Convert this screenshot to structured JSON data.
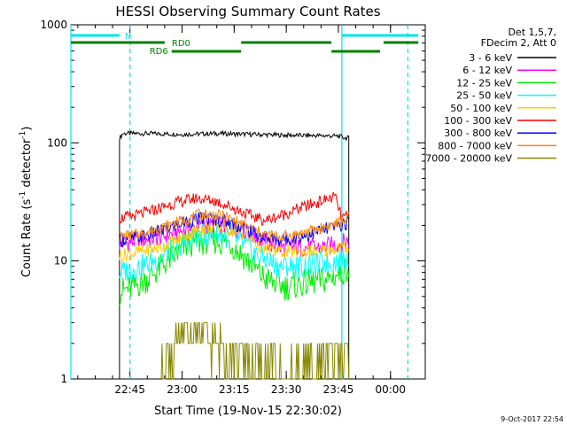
{
  "chart_data": {
    "type": "line",
    "title": "HESSI Observing Summary Count Rates",
    "xlabel": "Start Time (19-Nov-15 22:30:02)",
    "ylabel_main": "Count Rate (s",
    "ylabel_sup1": "-1",
    "ylabel_mid": " detector",
    "ylabel_sup2": "-1",
    "ylabel_end": ")",
    "yscale": "log",
    "ylim": [
      1,
      1000
    ],
    "xlim_min": [
      -2,
      100
    ],
    "x_ticks": [
      {
        "min": 15,
        "label": "22:45"
      },
      {
        "min": 30,
        "label": "23:00"
      },
      {
        "min": 45,
        "label": "23:15"
      },
      {
        "min": 60,
        "label": "23:30"
      },
      {
        "min": 75,
        "label": "23:45"
      },
      {
        "min": 90,
        "label": "00:00"
      }
    ],
    "y_ticks": [
      {
        "value": 1,
        "label": "1"
      },
      {
        "value": 10,
        "label": "10"
      },
      {
        "value": 100,
        "label": "100"
      },
      {
        "value": 1000,
        "label": "1000"
      }
    ],
    "legend_header": [
      "Det 1,5,7,",
      "FDecim 2, Att 0"
    ],
    "legend_placement": "top-right, outside plot",
    "series": [
      {
        "name": "3 - 6 keV",
        "color": "#000000",
        "points": [
          [
            12,
            110
          ],
          [
            13,
            120
          ],
          [
            20,
            120
          ],
          [
            30,
            118
          ],
          [
            40,
            120
          ],
          [
            50,
            118
          ],
          [
            60,
            116
          ],
          [
            70,
            115
          ],
          [
            75,
            114
          ],
          [
            77,
            110
          ],
          [
            78,
            110
          ]
        ]
      },
      {
        "name": "6 - 12 keV",
        "color": "#ff00ff",
        "points": [
          [
            12,
            14
          ],
          [
            18,
            15
          ],
          [
            24,
            16
          ],
          [
            30,
            18
          ],
          [
            36,
            20
          ],
          [
            42,
            20
          ],
          [
            48,
            18
          ],
          [
            53,
            15
          ],
          [
            58,
            13
          ],
          [
            64,
            13
          ],
          [
            70,
            13
          ],
          [
            75,
            14
          ],
          [
            78,
            15
          ]
        ]
      },
      {
        "name": "12 - 25 keV",
        "color": "#00ee00",
        "points": [
          [
            12,
            5.5
          ],
          [
            16,
            6
          ],
          [
            20,
            7
          ],
          [
            26,
            10
          ],
          [
            32,
            14
          ],
          [
            38,
            15
          ],
          [
            44,
            14
          ],
          [
            49,
            10
          ],
          [
            54,
            7
          ],
          [
            60,
            6
          ],
          [
            66,
            6.5
          ],
          [
            72,
            7
          ],
          [
            76,
            8
          ],
          [
            78,
            9
          ]
        ]
      },
      {
        "name": "25 - 50 keV",
        "color": "#00ffff",
        "points": [
          [
            12,
            8
          ],
          [
            16,
            8.5
          ],
          [
            22,
            10
          ],
          [
            28,
            13
          ],
          [
            34,
            16
          ],
          [
            40,
            17
          ],
          [
            46,
            15
          ],
          [
            52,
            11
          ],
          [
            58,
            9
          ],
          [
            64,
            9
          ],
          [
            70,
            9.5
          ],
          [
            75,
            10
          ],
          [
            78,
            11
          ]
        ]
      },
      {
        "name": "50 - 100 keV",
        "color": "#ffcc00",
        "points": [
          [
            12,
            11
          ],
          [
            18,
            12
          ],
          [
            24,
            13
          ],
          [
            30,
            16
          ],
          [
            36,
            19
          ],
          [
            42,
            19
          ],
          [
            48,
            17
          ],
          [
            53,
            13
          ],
          [
            58,
            12
          ],
          [
            64,
            12
          ],
          [
            70,
            12
          ],
          [
            75,
            13
          ],
          [
            78,
            13
          ]
        ]
      },
      {
        "name": "100 - 300 keV",
        "color": "#ff0000",
        "points": [
          [
            12,
            23
          ],
          [
            16,
            24
          ],
          [
            22,
            27
          ],
          [
            28,
            31
          ],
          [
            34,
            34
          ],
          [
            40,
            32
          ],
          [
            46,
            27
          ],
          [
            50,
            24
          ],
          [
            54,
            22
          ],
          [
            58,
            24
          ],
          [
            64,
            28
          ],
          [
            70,
            32
          ],
          [
            74,
            35
          ],
          [
            76,
            23
          ],
          [
            78,
            24
          ]
        ]
      },
      {
        "name": "300 - 800 keV",
        "color": "#0000ff",
        "points": [
          [
            12,
            15
          ],
          [
            18,
            16
          ],
          [
            24,
            18
          ],
          [
            30,
            21
          ],
          [
            36,
            23
          ],
          [
            42,
            22
          ],
          [
            48,
            19
          ],
          [
            53,
            16
          ],
          [
            58,
            15
          ],
          [
            64,
            16
          ],
          [
            70,
            18
          ],
          [
            75,
            20
          ],
          [
            78,
            21
          ]
        ]
      },
      {
        "name": "800 - 7000 keV",
        "color": "#ff8800",
        "points": [
          [
            12,
            16
          ],
          [
            18,
            17
          ],
          [
            24,
            19
          ],
          [
            30,
            22
          ],
          [
            36,
            25
          ],
          [
            42,
            24
          ],
          [
            48,
            20
          ],
          [
            53,
            17
          ],
          [
            58,
            16
          ],
          [
            64,
            17
          ],
          [
            70,
            19
          ],
          [
            75,
            21
          ],
          [
            78,
            23
          ]
        ]
      },
      {
        "name": "7000 - 20000 keV",
        "color": "#888800",
        "points": [
          [
            24,
            1.3
          ],
          [
            28,
            1.8
          ],
          [
            32,
            2.5
          ],
          [
            36,
            2.2
          ],
          [
            40,
            2
          ],
          [
            44,
            1.8
          ],
          [
            48,
            1.6
          ],
          [
            52,
            1.2
          ],
          [
            62,
            1.1
          ],
          [
            68,
            1.2
          ],
          [
            72,
            1.6
          ],
          [
            76,
            1.8
          ],
          [
            78,
            1.4
          ]
        ]
      }
    ],
    "flags": [
      {
        "label": "N",
        "color": "#00e5e5",
        "segments": [
          [
            -2,
            12
          ],
          [
            76,
            98
          ]
        ]
      },
      {
        "label": "RD0",
        "color": "#008000",
        "segments": [
          [
            -2,
            25
          ],
          [
            47,
            73
          ],
          [
            88,
            98
          ]
        ]
      },
      {
        "label": "RD6",
        "color": "#008000",
        "segments": [
          [
            27,
            47
          ],
          [
            73,
            87
          ]
        ]
      }
    ],
    "vlines_solid": [
      -2,
      76
    ],
    "vlines_dashed": [
      15,
      95
    ],
    "timestamp": "9-Oct-2017 22:54"
  }
}
